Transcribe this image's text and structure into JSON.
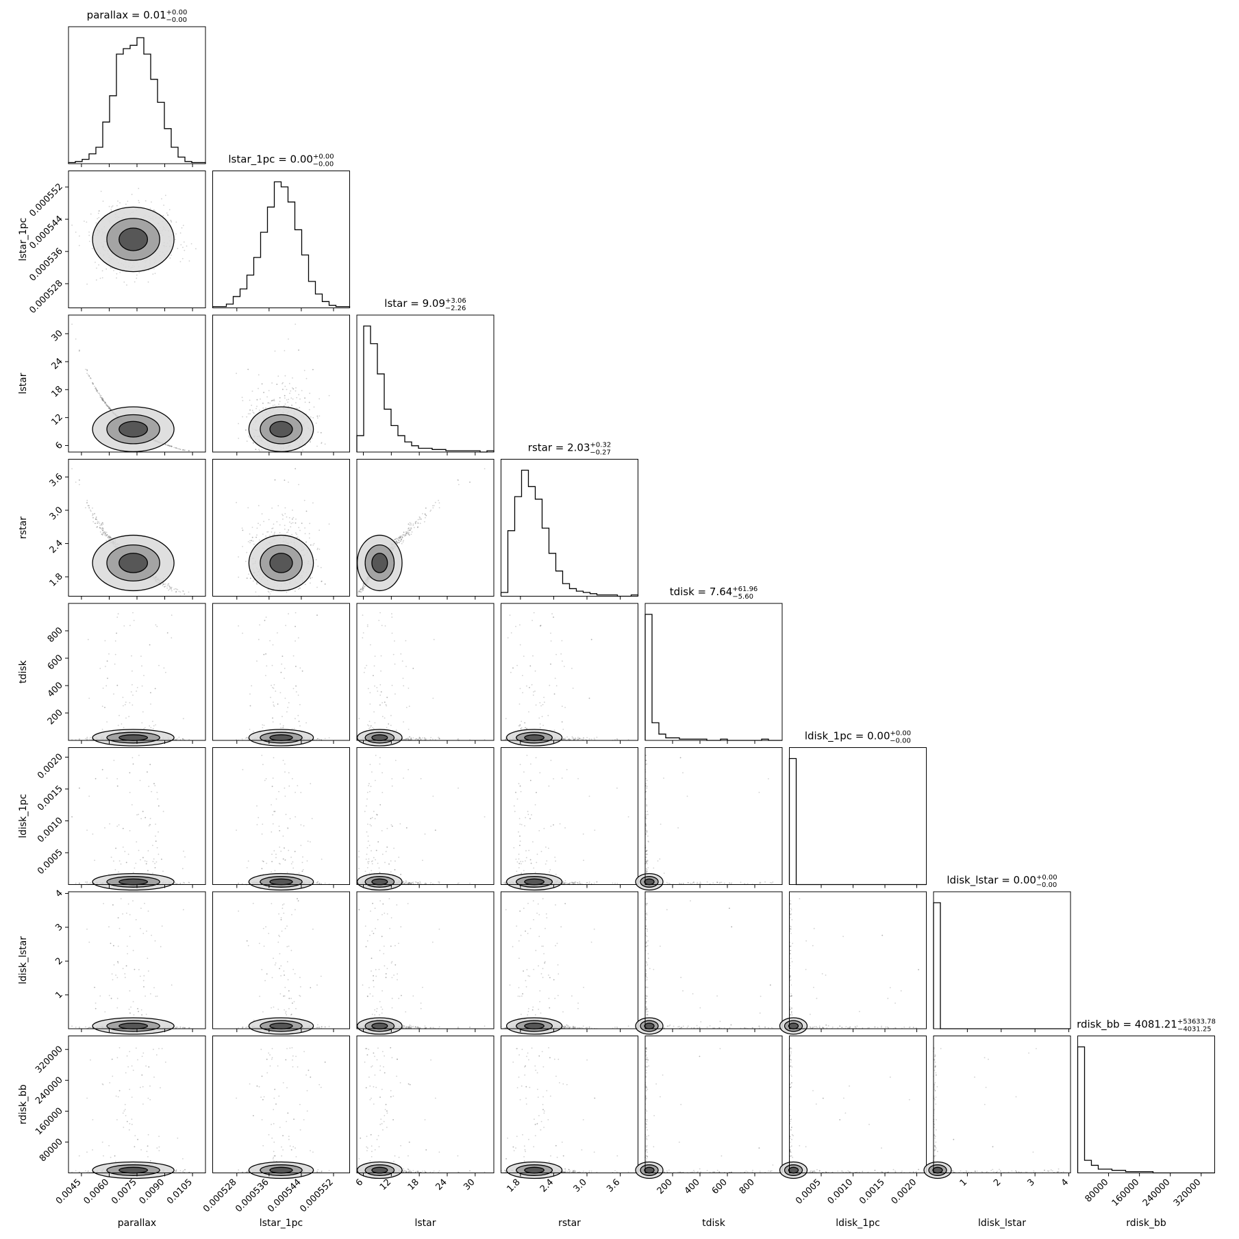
{
  "chart_data": {
    "type": "corner",
    "parameters": [
      {
        "key": "parallax",
        "label": "parallax",
        "median": "0.01",
        "plus": "+0.00",
        "minus": "−0.00",
        "range": [
          0.0038,
          0.0112
        ],
        "ticks": [
          0.0045,
          0.006,
          0.0075,
          0.009,
          0.0105
        ],
        "tick_labels": [
          "0.0045",
          "0.0060",
          "0.0075",
          "0.0090",
          "0.0105"
        ],
        "center": 0.0073,
        "sd": 0.0011
      },
      {
        "key": "lstar_1pc",
        "label": "lstar_1pc",
        "median": "0.00",
        "plus": "+0.00",
        "minus": "−0.00",
        "range": [
          0.000522,
          0.000556
        ],
        "ticks": [
          0.000528,
          0.000536,
          0.000544,
          0.000552
        ],
        "tick_labels": [
          "0.000528",
          "0.000536",
          "0.000544",
          "0.000552"
        ],
        "center": 0.000539,
        "sd": 4e-06
      },
      {
        "key": "lstar",
        "label": "lstar",
        "median": "9.09",
        "plus": "+3.06",
        "minus": "−2.26",
        "range": [
          4.6,
          34
        ],
        "ticks": [
          6,
          12,
          18,
          24,
          30
        ],
        "tick_labels": [
          "6",
          "12",
          "18",
          "24",
          "30"
        ],
        "center": 9.5,
        "sd": 2.4
      },
      {
        "key": "rstar",
        "label": "rstar",
        "median": "2.03",
        "plus": "+0.32",
        "minus": "−0.27",
        "range": [
          1.45,
          3.92
        ],
        "ticks": [
          1.8,
          2.4,
          3.0,
          3.6
        ],
        "tick_labels": [
          "1.8",
          "2.4",
          "3.0",
          "3.6"
        ],
        "center": 2.05,
        "sd": 0.25
      },
      {
        "key": "tdisk",
        "label": "tdisk",
        "median": "7.64",
        "plus": "+61.96",
        "minus": "−5.60",
        "range": [
          0,
          1000
        ],
        "ticks": [
          200,
          400,
          600,
          800
        ],
        "tick_labels": [
          "200",
          "400",
          "600",
          "800"
        ],
        "center": 0,
        "sd": 0
      },
      {
        "key": "ldisk_1pc",
        "label": "ldisk_1pc",
        "median": "0.00",
        "plus": "+0.00",
        "minus": "−0.00",
        "range": [
          0,
          0.00215
        ],
        "ticks": [
          0.0005,
          0.001,
          0.0015,
          0.002
        ],
        "tick_labels": [
          "0.0005",
          "0.0010",
          "0.0015",
          "0.0020"
        ],
        "center": 0,
        "sd": 0
      },
      {
        "key": "ldisk_lstar",
        "label": "ldisk_lstar",
        "median": "0.00",
        "plus": "+0.00",
        "minus": "−0.00",
        "range": [
          0,
          4.05
        ],
        "ticks": [
          1,
          2,
          3,
          4
        ],
        "tick_labels": [
          "1",
          "2",
          "3",
          "4"
        ],
        "center": 0,
        "sd": 0
      },
      {
        "key": "rdisk_bb",
        "label": "rdisk_bb",
        "median": "4081.21",
        "plus": "+53633.78",
        "minus": "−4031.25",
        "range": [
          0,
          355000
        ],
        "ticks": [
          80000,
          160000,
          240000,
          320000
        ],
        "tick_labels": [
          "80000",
          "160000",
          "240000",
          "320000"
        ],
        "center": 0,
        "sd": 0
      }
    ],
    "histograms": [
      [
        1,
        2,
        4,
        9,
        15,
        38,
        62,
        100,
        105,
        108,
        115,
        100,
        77,
        56,
        32,
        15,
        6,
        2,
        1,
        1
      ],
      [
        1,
        1,
        3,
        9,
        15,
        26,
        40,
        60,
        80,
        100,
        96,
        84,
        62,
        42,
        21,
        11,
        5,
        2,
        1,
        1
      ],
      [
        13,
        100,
        86,
        62,
        34,
        21,
        13,
        8,
        5,
        3,
        3,
        2,
        2,
        1,
        1,
        1,
        1,
        1,
        0,
        1
      ],
      [
        3,
        52,
        79,
        100,
        87,
        77,
        54,
        34,
        20,
        10,
        6,
        4,
        3,
        2,
        1,
        1,
        1,
        0,
        0,
        1
      ],
      [
        100,
        14,
        5,
        2,
        2,
        1,
        1,
        1,
        1,
        0,
        0,
        1,
        0,
        0,
        0,
        0,
        0,
        1,
        0,
        0
      ],
      [
        100,
        0,
        0,
        0,
        0,
        0,
        0,
        0,
        0,
        0,
        0,
        0,
        0,
        0,
        0,
        0,
        0,
        0,
        0,
        0
      ],
      [
        100,
        0,
        0,
        0,
        0,
        0,
        0,
        0,
        0,
        0,
        0,
        0,
        0,
        0,
        0,
        0,
        0,
        0,
        0,
        0
      ],
      [
        100,
        10,
        6,
        3,
        3,
        2,
        2,
        1,
        1,
        1,
        1,
        0,
        0,
        0,
        0,
        0,
        0,
        0,
        0,
        0
      ]
    ],
    "layout": "lower-triangle",
    "grid": false,
    "legend": "none"
  }
}
